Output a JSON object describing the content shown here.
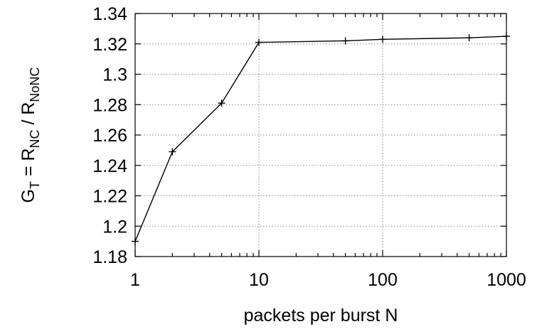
{
  "chart_data": {
    "type": "line",
    "title": "",
    "xlabel": "packets per burst N",
    "ylabel": {
      "parts": [
        {
          "text": "G",
          "sub": false
        },
        {
          "text": "T",
          "sub": true
        },
        {
          "text": " = R",
          "sub": false
        },
        {
          "text": "NC",
          "sub": true
        },
        {
          "text": " / R",
          "sub": false
        },
        {
          "text": "NoNC",
          "sub": true
        }
      ]
    },
    "x_scale": "log",
    "xlim": [
      1,
      1000
    ],
    "ylim": [
      1.18,
      1.34
    ],
    "grid": true,
    "x_ticks": [
      1,
      10,
      100,
      1000
    ],
    "x_tick_labels": [
      "1",
      "10",
      "100",
      "1000"
    ],
    "y_ticks": [
      1.18,
      1.2,
      1.22,
      1.24,
      1.26,
      1.28,
      1.3,
      1.32,
      1.34
    ],
    "y_tick_labels": [
      "1.18",
      "1.2",
      "1.22",
      "1.24",
      "1.26",
      "1.28",
      "1.3",
      "1.32",
      "1.34"
    ],
    "series": [
      {
        "x": [
          1,
          2,
          5,
          10,
          50,
          100,
          500,
          1000
        ],
        "y": [
          1.19,
          1.249,
          1.281,
          1.321,
          1.322,
          1.323,
          1.324,
          1.325
        ],
        "marker": "plus",
        "color": "#000000"
      }
    ]
  }
}
